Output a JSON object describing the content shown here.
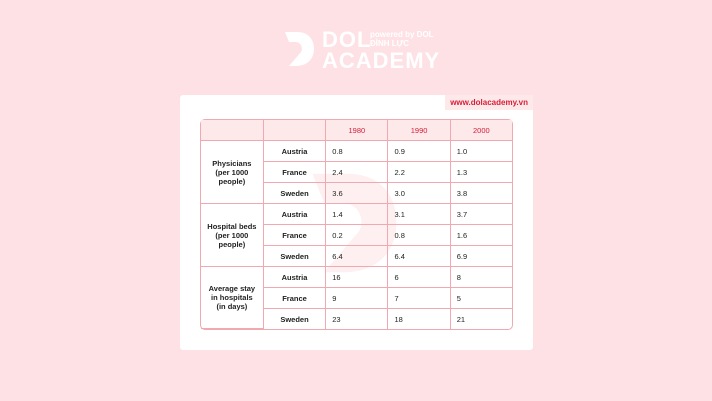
{
  "header": {
    "brand_top": "DOL",
    "brand_bottom": "ACADEMY",
    "powered_by": "powered by DOL ĐÌNH LỰC",
    "website": "www.dolacademy.vn"
  },
  "table": {
    "columns": [
      "1980",
      "1990",
      "2000"
    ],
    "groups": [
      {
        "label": "Physicians (per 1000 people)",
        "rows": [
          {
            "country": "Austria",
            "values": [
              "0.8",
              "0.9",
              "1.0"
            ]
          },
          {
            "country": "France",
            "values": [
              "2.4",
              "2.2",
              "1.3"
            ]
          },
          {
            "country": "Sweden",
            "values": [
              "3.6",
              "3.0",
              "3.8"
            ]
          }
        ]
      },
      {
        "label": "Hospital beds (per 1000 people)",
        "rows": [
          {
            "country": "Austria",
            "values": [
              "1.4",
              "3.1",
              "3.7"
            ]
          },
          {
            "country": "France",
            "values": [
              "0.2",
              "0.8",
              "1.6"
            ]
          },
          {
            "country": "Sweden",
            "values": [
              "6.4",
              "6.4",
              "6.9"
            ]
          }
        ]
      },
      {
        "label": "Average stay in hospitals (in days)",
        "rows": [
          {
            "country": "Austria",
            "values": [
              "16",
              "6",
              "8"
            ]
          },
          {
            "country": "France",
            "values": [
              "9",
              "7",
              "5"
            ]
          },
          {
            "country": "Sweden",
            "values": [
              "23",
              "18",
              "21"
            ]
          }
        ]
      }
    ]
  }
}
